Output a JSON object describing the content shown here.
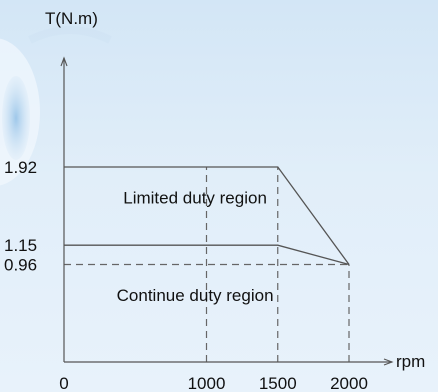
{
  "chart_data": {
    "type": "line",
    "ylabel": "T(N.m)",
    "xlabel": "rpm",
    "x_ticks": [
      {
        "value": 0,
        "label": "0"
      },
      {
        "value": 1000,
        "label": "1000"
      },
      {
        "value": 1500,
        "label": "1500"
      },
      {
        "value": 2000,
        "label": "2000"
      }
    ],
    "y_ticks": [
      {
        "value": 1.92,
        "label": "1.92"
      },
      {
        "value": 1.15,
        "label": "1.15"
      },
      {
        "value": 0.96,
        "label": "0.96"
      }
    ],
    "xlim": [
      0,
      2000
    ],
    "ylim": [
      0,
      1.92
    ],
    "series": [
      {
        "points": [
          [
            0,
            1.92
          ],
          [
            1500,
            1.92
          ],
          [
            2000,
            0.96
          ]
        ]
      },
      {
        "points": [
          [
            0,
            1.15
          ],
          [
            1500,
            1.15
          ],
          [
            2000,
            0.96
          ]
        ]
      }
    ],
    "reference_lines": [
      {
        "orientation": "vertical",
        "value": 1000,
        "from": 0,
        "to": 1.92
      },
      {
        "orientation": "vertical",
        "value": 1500,
        "from": 0,
        "to": 1.92
      },
      {
        "orientation": "vertical",
        "value": 2000,
        "from": 0,
        "to": 0.96
      },
      {
        "orientation": "horizontal",
        "value": 0.96,
        "from": 0,
        "to": 2000
      }
    ],
    "annotations": [
      {
        "text": "Limited duty region",
        "x": 920,
        "y": 1.56
      },
      {
        "text": "Continue duty region",
        "x": 920,
        "y": 0.6
      }
    ],
    "grid": false
  },
  "colors": {
    "axis": "#555555",
    "line": "#555555",
    "dash": "#666666",
    "text": "#111111"
  }
}
